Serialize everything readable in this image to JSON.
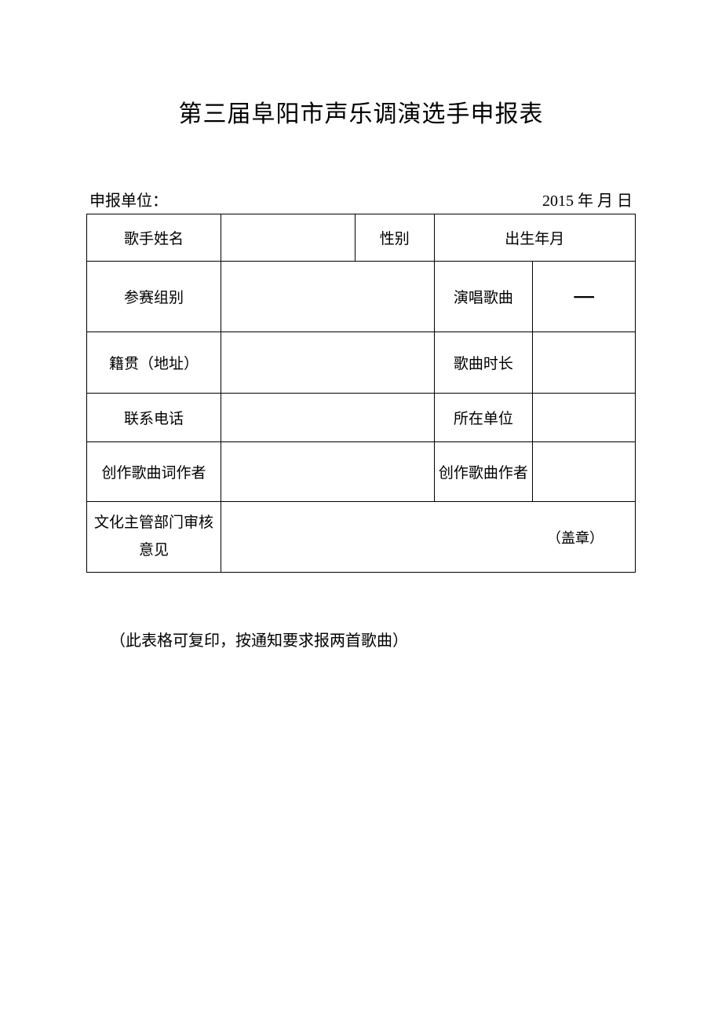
{
  "title": "第三届阜阳市声乐调演选手申报表",
  "header": {
    "unit_label": "申报单位：",
    "date_label": "2015 年 月 日"
  },
  "table": {
    "row1": {
      "label1": "歌手姓名",
      "label2": "性别",
      "label3": "出生年月"
    },
    "row2": {
      "label1": "参赛组别",
      "label2": "演唱歌曲",
      "value2": "一"
    },
    "row3": {
      "label1": "籍贯（地址）",
      "label2": "歌曲时长"
    },
    "row4": {
      "label1": "联系电话",
      "label2": "所在单位"
    },
    "row5": {
      "label1": "创作歌曲词作者",
      "label2": "创作歌曲作者"
    },
    "row6": {
      "label1": "文化主管部门审核意见",
      "stamp": "（盖章）"
    }
  },
  "footer_note": "（此表格可复印，按通知要求报两首歌曲）",
  "colors": {
    "background": "#ffffff",
    "text": "#000000",
    "border": "#000000"
  }
}
